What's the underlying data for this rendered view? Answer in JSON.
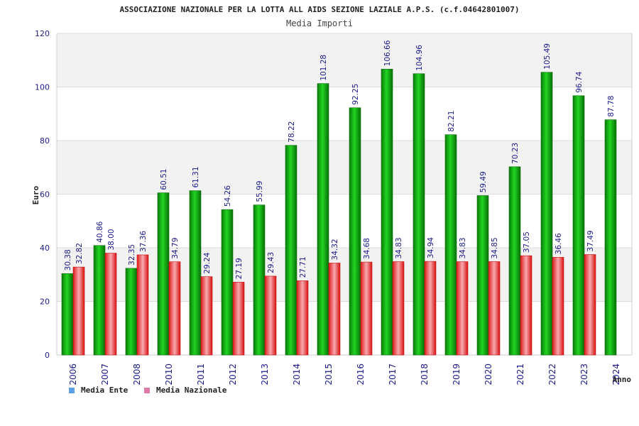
{
  "chart_data": {
    "type": "bar",
    "title": "ASSOCIAZIONE NAZIONALE PER LA LOTTA ALL AIDS SEZIONE LAZIALE A.P.S. (c.f.04642801007)",
    "subtitle": "Media Importi",
    "xlabel": "Anno",
    "ylabel": "Euro",
    "ylim": [
      0,
      120
    ],
    "yticks": [
      0,
      20,
      40,
      60,
      80,
      100,
      120
    ],
    "categories": [
      "2006",
      "2007",
      "2008",
      "2010",
      "2011",
      "2012",
      "2013",
      "2014",
      "2015",
      "2016",
      "2017",
      "2018",
      "2019",
      "2020",
      "2021",
      "2022",
      "2023",
      "2024"
    ],
    "series": [
      {
        "name": "Media Ente",
        "color": "#1bc41b",
        "values": [
          30.38,
          40.86,
          32.35,
          60.51,
          61.31,
          54.26,
          55.99,
          78.22,
          101.28,
          92.25,
          106.66,
          104.96,
          82.21,
          59.49,
          70.23,
          105.49,
          96.74,
          87.78
        ],
        "labels": [
          "30.38",
          "40.86",
          "32.35",
          "60.51",
          "61.31",
          "54.26",
          "55.99",
          "78.22",
          "101.28",
          "92.25",
          "106.66",
          "104.96",
          "82.21",
          "59.49",
          "70.23",
          "105.49",
          "96.74",
          "87.78"
        ]
      },
      {
        "name": "Media Nazionale",
        "color": "#e81c1c",
        "values": [
          32.82,
          38.0,
          37.36,
          34.79,
          29.24,
          27.19,
          29.43,
          27.71,
          34.32,
          34.68,
          34.83,
          34.94,
          34.83,
          34.85,
          37.05,
          36.46,
          37.49,
          null
        ],
        "labels": [
          "32.82",
          "38.00",
          "37.36",
          "34.79",
          "29.24",
          "27.19",
          "29.43",
          "27.71",
          "34.32",
          "34.68",
          "34.83",
          "34.94",
          "34.83",
          "34.85",
          "37.05",
          "36.46",
          "37.49",
          null
        ]
      }
    ],
    "legend": [
      {
        "label": "Media Ente",
        "color": "#5b9ee8"
      },
      {
        "label": "Media Nazionale",
        "color": "#e07aa8"
      }
    ],
    "legend_position": "bottom-left",
    "grid": true
  }
}
